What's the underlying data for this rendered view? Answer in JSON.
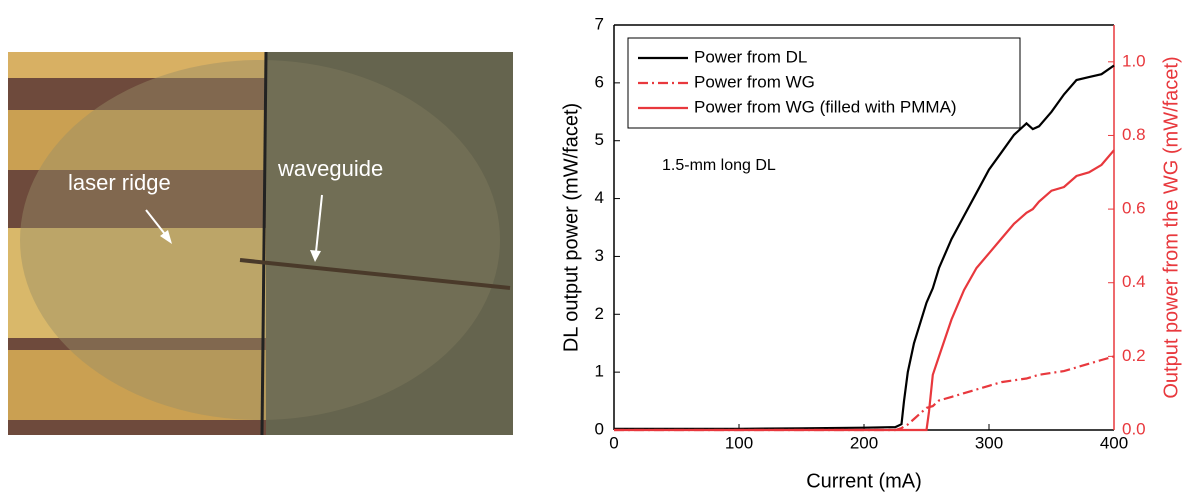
{
  "image_labels": [
    "laser ridge",
    "waveguide"
  ],
  "chart_data": {
    "type": "line",
    "xlabel": "Current (mA)",
    "ylabel": "DL output power (mW/facet)",
    "y2label": "Output power from the WG (mW/facet)",
    "annotation": "1.5-mm long DL",
    "x": [
      0,
      50,
      100,
      150,
      200,
      225,
      230,
      232,
      235,
      240,
      250,
      252,
      255,
      260,
      270,
      280,
      290,
      300,
      310,
      320,
      330,
      335,
      340,
      350,
      360,
      370,
      380,
      390,
      400
    ],
    "xlim": [
      0,
      400
    ],
    "xticks": [
      0,
      100,
      200,
      300,
      400
    ],
    "ylim": [
      0,
      7
    ],
    "yticks": [
      0,
      1,
      2,
      3,
      4,
      5,
      6,
      7
    ],
    "y2lim": [
      0,
      1.1
    ],
    "y2ticks": [
      {
        "value": 0,
        "label": "0.0"
      },
      0.2,
      0.4,
      0.6,
      0.8,
      {
        "value": 1,
        "label": "1.0"
      }
    ],
    "legend": "upper-left",
    "series": [
      {
        "name": "Power from DL",
        "color": "#000000",
        "style": "solid",
        "values": [
          0.02,
          0.02,
          0.02,
          0.03,
          0.04,
          0.05,
          0.1,
          0.5,
          1.0,
          1.5,
          2.2,
          2.3,
          2.45,
          2.8,
          3.3,
          3.7,
          4.1,
          4.5,
          4.8,
          5.1,
          5.3,
          5.2,
          5.25,
          5.5,
          5.8,
          6.05,
          6.1,
          6.15,
          6.3
        ]
      },
      {
        "name": "Power from WG",
        "color": "#e8383d",
        "style": "dashdot",
        "axis": "y2",
        "values": [
          0,
          0,
          0,
          0,
          0,
          0,
          0.005,
          0.01,
          0.015,
          0.03,
          0.06,
          0.062,
          0.065,
          0.08,
          0.09,
          0.1,
          0.11,
          0.12,
          0.13,
          0.135,
          0.14,
          0.145,
          0.15,
          0.155,
          0.16,
          0.17,
          0.18,
          0.19,
          0.2
        ]
      },
      {
        "name": "Power from WG (filled with PMMA)",
        "color": "#e8383d",
        "style": "solid",
        "axis": "y2",
        "values": [
          0,
          0,
          0,
          0,
          0,
          0,
          0,
          0,
          0,
          0,
          0,
          0.05,
          0.15,
          0.2,
          0.3,
          0.38,
          0.44,
          0.48,
          0.52,
          0.56,
          0.59,
          0.6,
          0.62,
          0.65,
          0.66,
          0.69,
          0.7,
          0.72,
          0.76
        ]
      }
    ]
  }
}
